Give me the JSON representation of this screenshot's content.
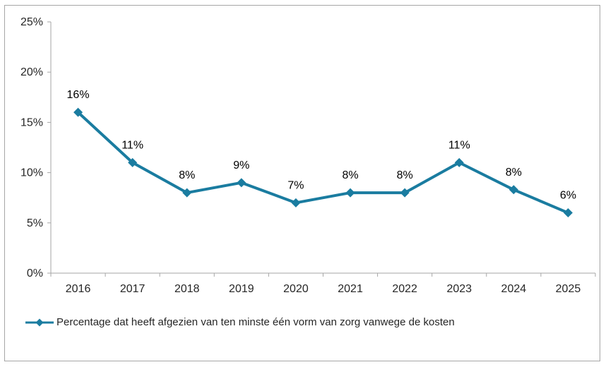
{
  "chart_data": {
    "type": "line",
    "title": "",
    "xlabel": "",
    "ylabel": "",
    "categories": [
      "2016",
      "2017",
      "2018",
      "2019",
      "2020",
      "2021",
      "2022",
      "2023",
      "2024",
      "2025"
    ],
    "series": [
      {
        "name": "Percentage dat heeft afgezien van ten minste één vorm van zorg vanwege de kosten",
        "values": [
          16,
          11,
          8,
          9,
          7,
          8,
          8,
          11,
          8.3,
          6
        ],
        "data_labels": [
          "16%",
          "11%",
          "8%",
          "9%",
          "7%",
          "8%",
          "8%",
          "11%",
          "8%",
          "6%"
        ],
        "marker": "diamond"
      }
    ],
    "ylim": [
      0,
      25
    ],
    "y_tick_values": [
      0,
      5,
      10,
      15,
      20,
      25
    ],
    "y_tick_labels": [
      "0%",
      "5%",
      "10%",
      "15%",
      "20%",
      "25%"
    ],
    "grid": false,
    "legend_position": "bottom-left"
  },
  "colors": {
    "series": "#1A7CA0",
    "axis": "#A6A6A6",
    "frame_border": "#A6A6A6",
    "axis_text": "#262626",
    "data_label_text": "#000000",
    "background": "#FFFFFF"
  }
}
